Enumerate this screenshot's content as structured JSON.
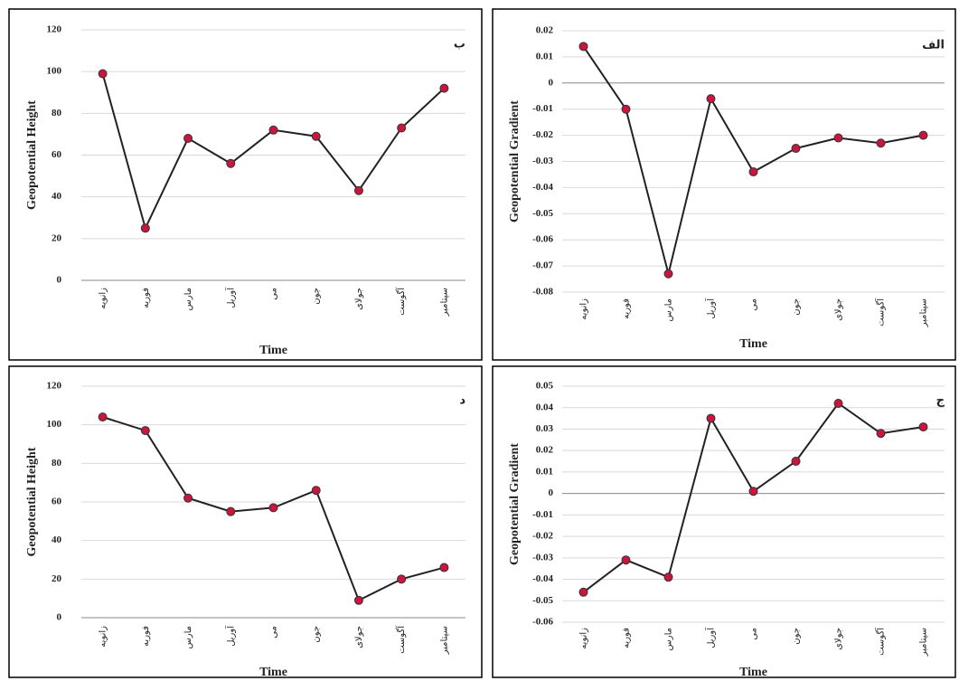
{
  "chart_data": [
    {
      "type": "line",
      "label": "ب",
      "y_label": "Geopotential Height",
      "x_label": "Time",
      "categories": [
        "زانویه",
        "فوریه",
        "مارس",
        "آوریل",
        "می",
        "جون",
        "جولای",
        "آگوست",
        "سپتامبر"
      ],
      "values": [
        99,
        25,
        68,
        56,
        72,
        69,
        43,
        73,
        92
      ],
      "color": "#c8163c",
      "line_color": "#222222",
      "ylim": [
        0,
        120
      ],
      "yticks": [
        0,
        20,
        40,
        60,
        80,
        100,
        120
      ],
      "grid": true
    },
    {
      "type": "line",
      "label": "الف",
      "y_label": "Geopotential Gradient",
      "x_label": "Time",
      "categories": [
        "زانویه",
        "فوریه",
        "مارس",
        "آوریل",
        "می",
        "جون",
        "جولای",
        "آگوست",
        "سپتامبر"
      ],
      "values": [
        0.014,
        -0.01,
        -0.073,
        -0.006,
        -0.034,
        -0.025,
        -0.021,
        -0.023,
        -0.02
      ],
      "color": "#c8163c",
      "line_color": "#222222",
      "ylim": [
        -0.08,
        0.02
      ],
      "yticks": [
        -0.08,
        -0.07,
        -0.06,
        -0.05,
        -0.04,
        -0.03,
        -0.02,
        -0.01,
        0,
        0.01,
        0.02
      ],
      "grid": true
    },
    {
      "type": "line",
      "label": "د",
      "y_label": "Geopotential Height",
      "x_label": "Time",
      "categories": [
        "زانویه",
        "فوریه",
        "مارس",
        "آوریل",
        "می",
        "جون",
        "جولای",
        "آگوست",
        "سپتامبر"
      ],
      "values": [
        104,
        97,
        62,
        55,
        57,
        66,
        9,
        20,
        26
      ],
      "color": "#c8163c",
      "line_color": "#222222",
      "ylim": [
        0,
        120
      ],
      "yticks": [
        0,
        20,
        40,
        60,
        80,
        100,
        120
      ],
      "grid": true
    },
    {
      "type": "line",
      "label": "ج",
      "y_label": "Geopotential Gradient",
      "x_label": "Time",
      "categories": [
        "زانویه",
        "فوریه",
        "مارس",
        "آوریل",
        "می",
        "جون",
        "جولای",
        "آگوست",
        "سپتامبر"
      ],
      "values": [
        -0.046,
        -0.031,
        -0.039,
        0.035,
        0.001,
        0.015,
        0.042,
        0.028,
        0.031
      ],
      "color": "#c8163c",
      "line_color": "#222222",
      "ylim": [
        -0.06,
        0.05
      ],
      "yticks": [
        -0.06,
        -0.05,
        -0.04,
        -0.03,
        -0.02,
        -0.01,
        0,
        0.01,
        0.02,
        0.03,
        0.04,
        0.05
      ],
      "grid": true
    }
  ]
}
